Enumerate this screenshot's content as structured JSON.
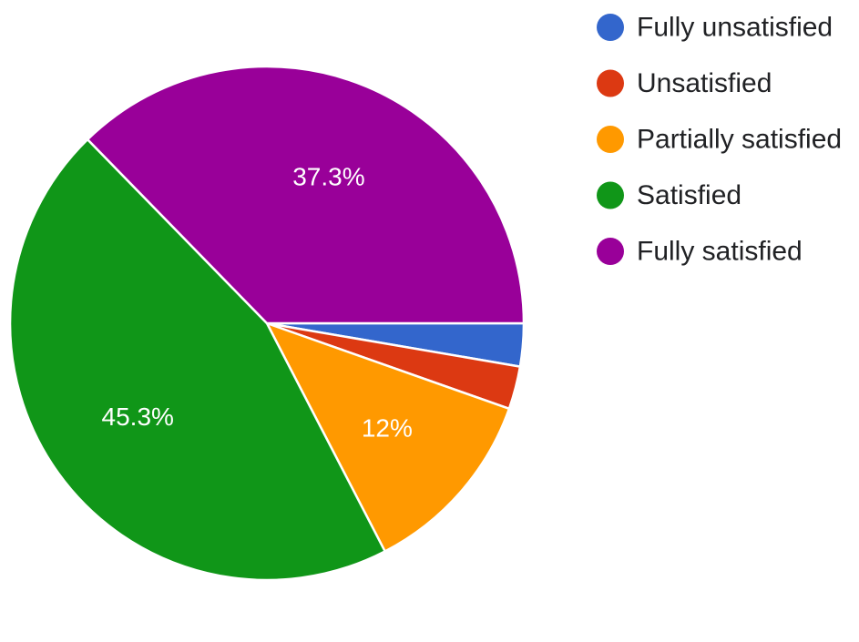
{
  "chart_data": {
    "type": "pie",
    "title": "",
    "categories": [
      "Fully unsatisfied",
      "Unsatisfied",
      "Partially satisfied",
      "Satisfied",
      "Fully satisfied"
    ],
    "values": [
      2.7,
      2.7,
      12.0,
      45.3,
      37.3
    ],
    "data_labels": [
      "",
      "",
      "12%",
      "45.3%",
      "37.3%"
    ],
    "colors": [
      "#3366cc",
      "#dc3912",
      "#ff9900",
      "#109618",
      "#990099"
    ],
    "start": "3 o'clock",
    "direction": "clockwise",
    "legend_position": "right"
  }
}
